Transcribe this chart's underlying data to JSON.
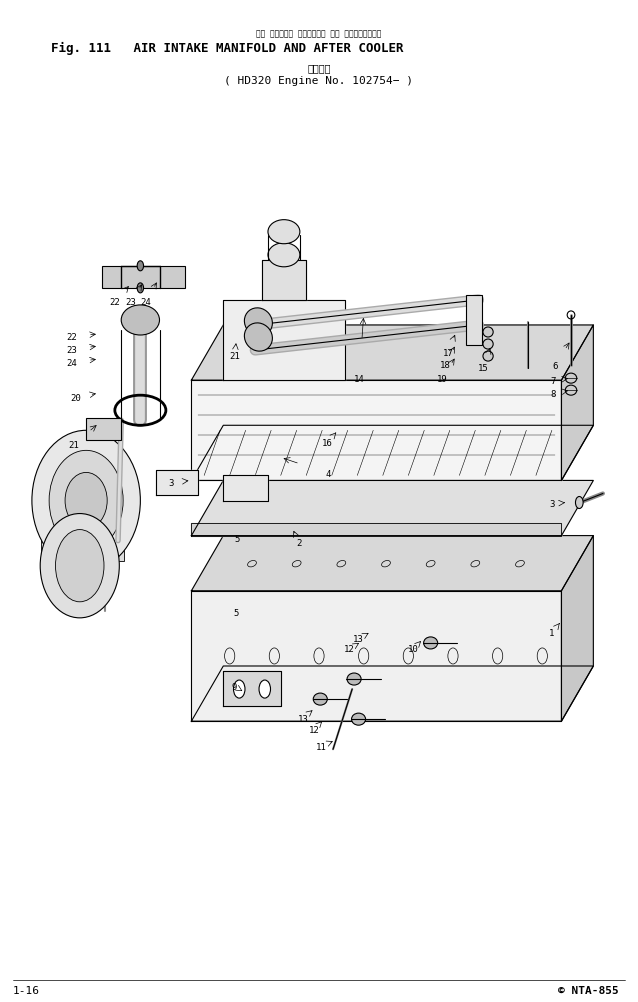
{
  "title_line1": "Fig. 111   AIR INTAKE MANIFOLD AND AFTER COOLER",
  "title_line2_japanese": "通用号機",
  "title_line2_main": "( HD320 Engine No. 102754− )",
  "footer_left": "1-16",
  "footer_right": "© NTA-855",
  "bg_color": "#ffffff",
  "line_color": "#000000",
  "fig_width": 6.38,
  "fig_height": 10.03
}
